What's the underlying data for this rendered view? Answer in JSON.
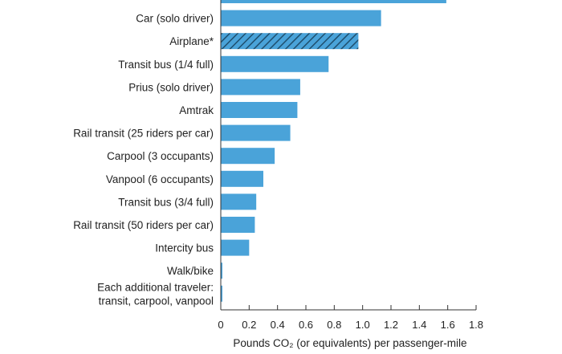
{
  "chart_data": {
    "type": "bar",
    "orientation": "horizontal",
    "title": "",
    "xlabel": "Pounds CO₂ (or equivalents) per passenger-mile",
    "ylabel": "",
    "xlim": [
      0,
      1.8
    ],
    "xticks": [
      0,
      0.2,
      0.4,
      0.6,
      0.8,
      1.0,
      1.2,
      1.4,
      1.6,
      1.8
    ],
    "xtick_labels": [
      "0",
      "0.2",
      "0.4",
      "0.6",
      "0.8",
      "1.0",
      "1.2",
      "1.4",
      "1.6",
      "1.8"
    ],
    "grid": false,
    "bar_color": "#4aa3d9",
    "hatched_bar_color": "#4aa3d9",
    "categories": [
      {
        "lines": [
          "(partially hidden)"
        ],
        "value": 1.59,
        "hatched": false,
        "label_hidden": true
      },
      {
        "lines": [
          "Car (solo driver)"
        ],
        "value": 1.13,
        "hatched": false
      },
      {
        "lines": [
          "Airplane*"
        ],
        "value": 0.97,
        "hatched": true
      },
      {
        "lines": [
          "Transit bus (1/4 full)"
        ],
        "value": 0.76,
        "hatched": false
      },
      {
        "lines": [
          "Prius (solo driver)"
        ],
        "value": 0.56,
        "hatched": false
      },
      {
        "lines": [
          "Amtrak"
        ],
        "value": 0.54,
        "hatched": false
      },
      {
        "lines": [
          "Rail transit (25 riders per car)"
        ],
        "value": 0.49,
        "hatched": false
      },
      {
        "lines": [
          "Carpool (3 occupants)"
        ],
        "value": 0.38,
        "hatched": false
      },
      {
        "lines": [
          "Vanpool (6 occupants)"
        ],
        "value": 0.3,
        "hatched": false
      },
      {
        "lines": [
          "Transit bus (3/4 full)"
        ],
        "value": 0.25,
        "hatched": false
      },
      {
        "lines": [
          "Rail transit (50 riders per car)"
        ],
        "value": 0.24,
        "hatched": false
      },
      {
        "lines": [
          "Intercity bus"
        ],
        "value": 0.2,
        "hatched": false
      },
      {
        "lines": [
          "Walk/bike"
        ],
        "value": 0.01,
        "hatched": false
      },
      {
        "lines": [
          "Each additional traveler:",
          "transit, carpool, vanpool"
        ],
        "value": 0.01,
        "hatched": false
      }
    ]
  }
}
